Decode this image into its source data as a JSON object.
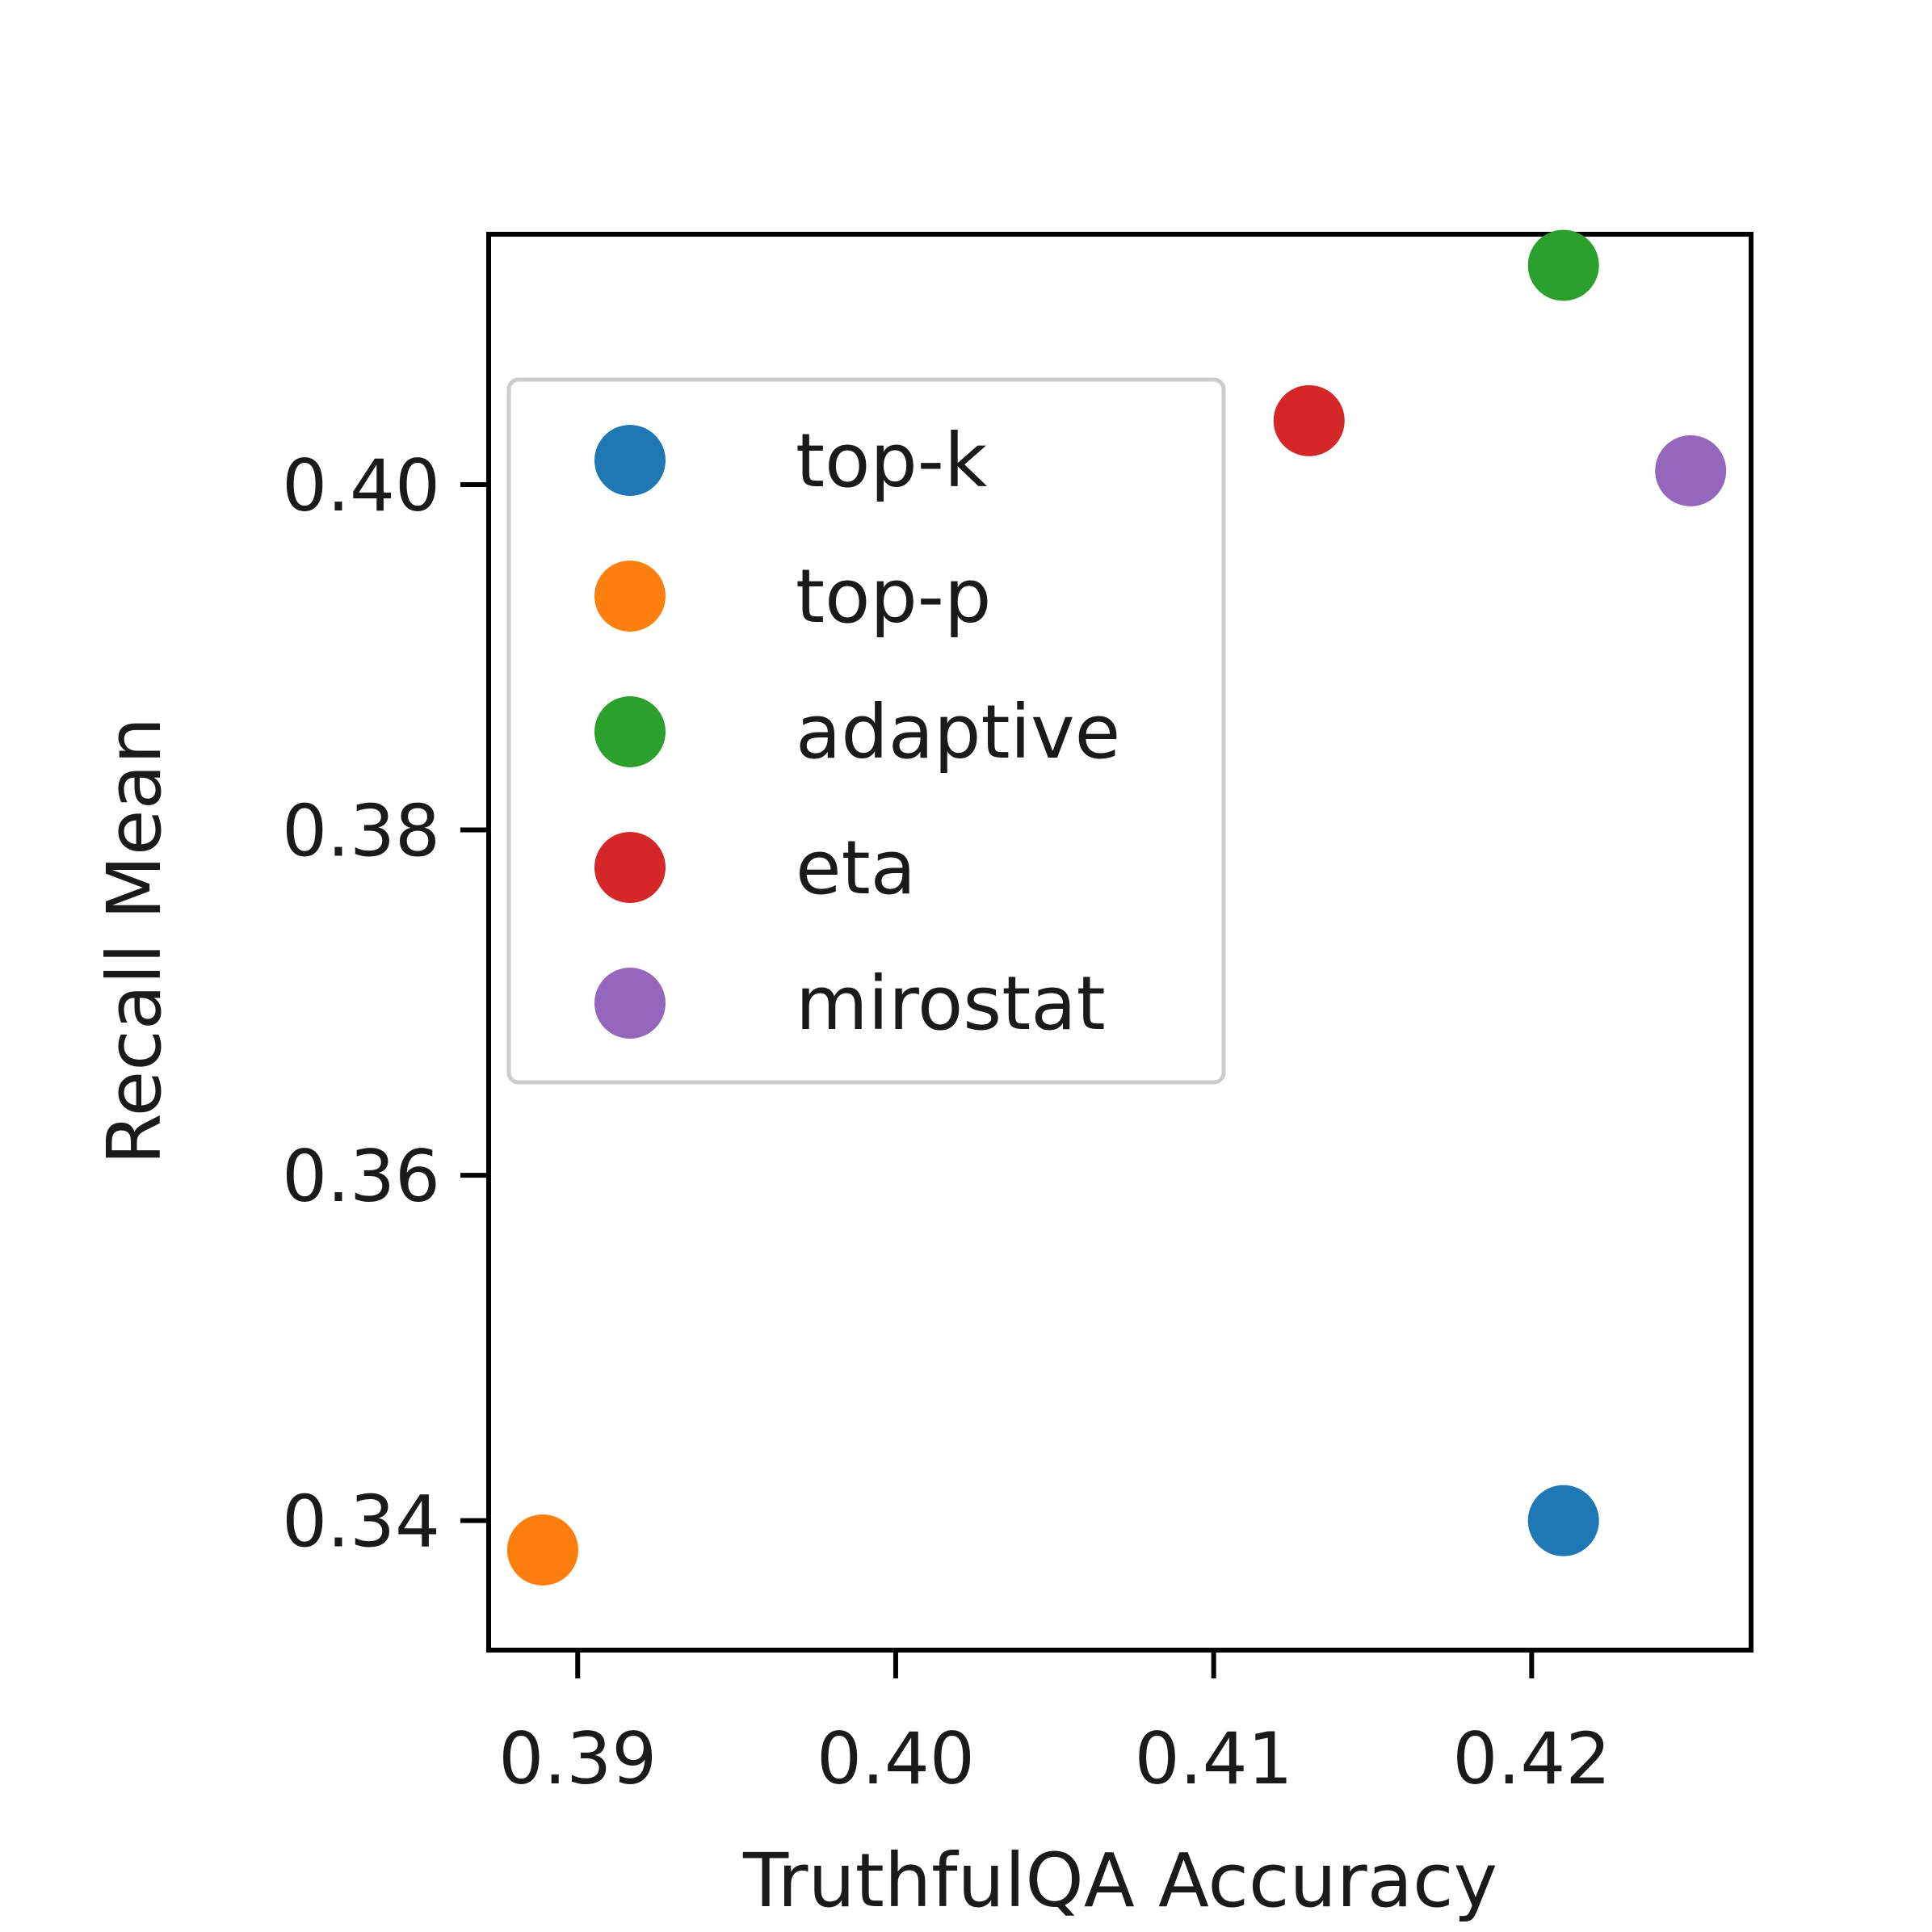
{
  "chart_data": {
    "type": "scatter",
    "title": "",
    "xlabel": "TruthfulQA Accuracy",
    "ylabel": "Recall Mean",
    "xlim": [
      0.3872,
      0.4269
    ],
    "ylim": [
      0.3325,
      0.4145
    ],
    "xticks": [
      0.39,
      0.4,
      0.41,
      0.42
    ],
    "xtick_labels": [
      "0.39",
      "0.40",
      "0.41",
      "0.42"
    ],
    "yticks": [
      0.34,
      0.36,
      0.38,
      0.4
    ],
    "ytick_labels": [
      "0.34",
      "0.36",
      "0.38",
      "0.40"
    ],
    "grid": false,
    "legend_position": "upper-left",
    "series": [
      {
        "name": "top-k",
        "color": "#1f77b4",
        "points": [
          {
            "x": 0.421,
            "y": 0.34
          }
        ]
      },
      {
        "name": "top-p",
        "color": "#ff7f0e",
        "points": [
          {
            "x": 0.3889,
            "y": 0.3383
          }
        ]
      },
      {
        "name": "adaptive",
        "color": "#2ca02c",
        "points": [
          {
            "x": 0.421,
            "y": 0.4127
          }
        ]
      },
      {
        "name": "eta",
        "color": "#d62728",
        "points": [
          {
            "x": 0.413,
            "y": 0.4037
          }
        ]
      },
      {
        "name": "mirostat",
        "color": "#9467bd",
        "points": [
          {
            "x": 0.425,
            "y": 0.4008
          }
        ]
      }
    ]
  }
}
